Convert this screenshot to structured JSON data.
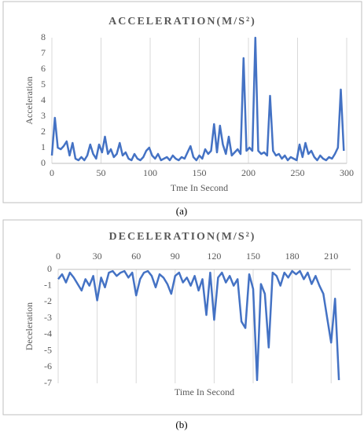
{
  "chart_data": [
    {
      "type": "line",
      "title": "ACCELERATION(M/S²)",
      "xlabel": "Tme In Second",
      "ylabel": "Acceleration",
      "caption": "(a)",
      "x": [
        0,
        3,
        6,
        9,
        12,
        15,
        18,
        21,
        24,
        27,
        30,
        33,
        36,
        39,
        42,
        45,
        48,
        51,
        54,
        57,
        60,
        63,
        66,
        69,
        72,
        75,
        78,
        81,
        84,
        87,
        90,
        93,
        96,
        99,
        102,
        105,
        108,
        111,
        114,
        117,
        120,
        123,
        126,
        129,
        132,
        135,
        138,
        141,
        144,
        147,
        150,
        153,
        156,
        159,
        162,
        165,
        168,
        171,
        174,
        177,
        180,
        183,
        186,
        189,
        192,
        195,
        198,
        201,
        204,
        207,
        210,
        213,
        216,
        219,
        222,
        225,
        228,
        231,
        234,
        237,
        240,
        243,
        246,
        249,
        252,
        255,
        258,
        261,
        264,
        267,
        270,
        273,
        276,
        279,
        282,
        285,
        288,
        291,
        294,
        297
      ],
      "series": [
        {
          "name": "Acceleration",
          "color": "#4472c4",
          "values": [
            0.5,
            2.9,
            1.0,
            0.9,
            1.1,
            1.4,
            0.5,
            1.3,
            0.3,
            0.2,
            0.4,
            0.2,
            0.5,
            1.2,
            0.6,
            0.3,
            1.2,
            0.7,
            1.7,
            0.6,
            0.9,
            0.4,
            0.6,
            1.3,
            0.5,
            0.7,
            0.3,
            0.2,
            0.6,
            0.3,
            0.2,
            0.4,
            0.8,
            1.0,
            0.5,
            0.3,
            0.6,
            0.2,
            0.3,
            0.4,
            0.2,
            0.5,
            0.3,
            0.2,
            0.4,
            0.3,
            0.7,
            1.1,
            0.4,
            0.2,
            0.5,
            0.3,
            0.9,
            0.6,
            0.8,
            2.5,
            0.7,
            2.4,
            1.2,
            0.6,
            1.7,
            0.5,
            0.7,
            0.9,
            0.6,
            6.7,
            0.8,
            1.0,
            0.8,
            8.0,
            0.8,
            0.6,
            0.7,
            0.5,
            4.3,
            0.8,
            0.5,
            0.6,
            0.3,
            0.5,
            0.2,
            0.4,
            0.3,
            0.2,
            1.2,
            0.4,
            1.3,
            0.6,
            0.8,
            0.4,
            0.2,
            0.5,
            0.3,
            0.2,
            0.4,
            0.3,
            0.6,
            1.0,
            4.7,
            0.8
          ]
        }
      ],
      "xlim": [
        0,
        300
      ],
      "xticks": [
        0,
        50,
        100,
        150,
        200,
        250,
        300
      ],
      "ylim": [
        0,
        8
      ],
      "yticks": [
        0,
        1,
        2,
        3,
        4,
        5,
        6,
        7,
        8
      ],
      "grid": "x",
      "xaxis_position": "bottom"
    },
    {
      "type": "line",
      "title": "DECELERATION(M/S²)",
      "xlabel": "Time In Second",
      "ylabel": "Deceleration",
      "caption": "(b)",
      "x": [
        0,
        3,
        6,
        9,
        12,
        15,
        18,
        21,
        24,
        27,
        30,
        33,
        36,
        39,
        42,
        45,
        48,
        51,
        54,
        57,
        60,
        63,
        66,
        69,
        72,
        75,
        78,
        81,
        84,
        87,
        90,
        93,
        96,
        99,
        102,
        105,
        108,
        111,
        114,
        117,
        120,
        123,
        126,
        129,
        132,
        135,
        138,
        141,
        144,
        147,
        150,
        153,
        156,
        159,
        162,
        165,
        168,
        171,
        174,
        177,
        180,
        183,
        186,
        189,
        192,
        195,
        198,
        201,
        204,
        207,
        210,
        213,
        216
      ],
      "series": [
        {
          "name": "Deceleration",
          "color": "#4472c4",
          "values": [
            -0.6,
            -0.3,
            -0.8,
            -0.2,
            -0.5,
            -0.9,
            -1.3,
            -0.6,
            -1.0,
            -0.4,
            -1.9,
            -0.5,
            -1.1,
            -0.2,
            -0.1,
            -0.4,
            -0.2,
            -0.1,
            -0.5,
            -0.2,
            -1.6,
            -0.6,
            -0.2,
            -0.1,
            -0.4,
            -1.1,
            -0.3,
            -0.5,
            -0.9,
            -1.5,
            -0.4,
            -0.2,
            -0.8,
            -0.5,
            -1.0,
            -0.4,
            -1.3,
            -0.6,
            -2.8,
            -0.2,
            -3.1,
            -0.5,
            -0.2,
            -0.8,
            -0.4,
            -1.0,
            -0.6,
            -3.2,
            -3.6,
            -0.3,
            -1.2,
            -6.8,
            -0.9,
            -1.5,
            -4.8,
            -0.2,
            -0.4,
            -1.0,
            -0.2,
            -0.5,
            -0.1,
            -0.3,
            -0.1,
            -0.6,
            -0.2,
            -0.9,
            -0.4,
            -1.0,
            -1.5,
            -3.0,
            -4.5,
            -1.8,
            -6.8
          ]
        }
      ],
      "xlim": [
        0,
        225
      ],
      "xticks": [
        0,
        30,
        60,
        90,
        120,
        150,
        180,
        210
      ],
      "ylim": [
        -7,
        0
      ],
      "yticks": [
        -7,
        -6,
        -5,
        -4,
        -3,
        -2,
        -1,
        0
      ],
      "grid": "x",
      "xaxis_position": "top"
    }
  ]
}
